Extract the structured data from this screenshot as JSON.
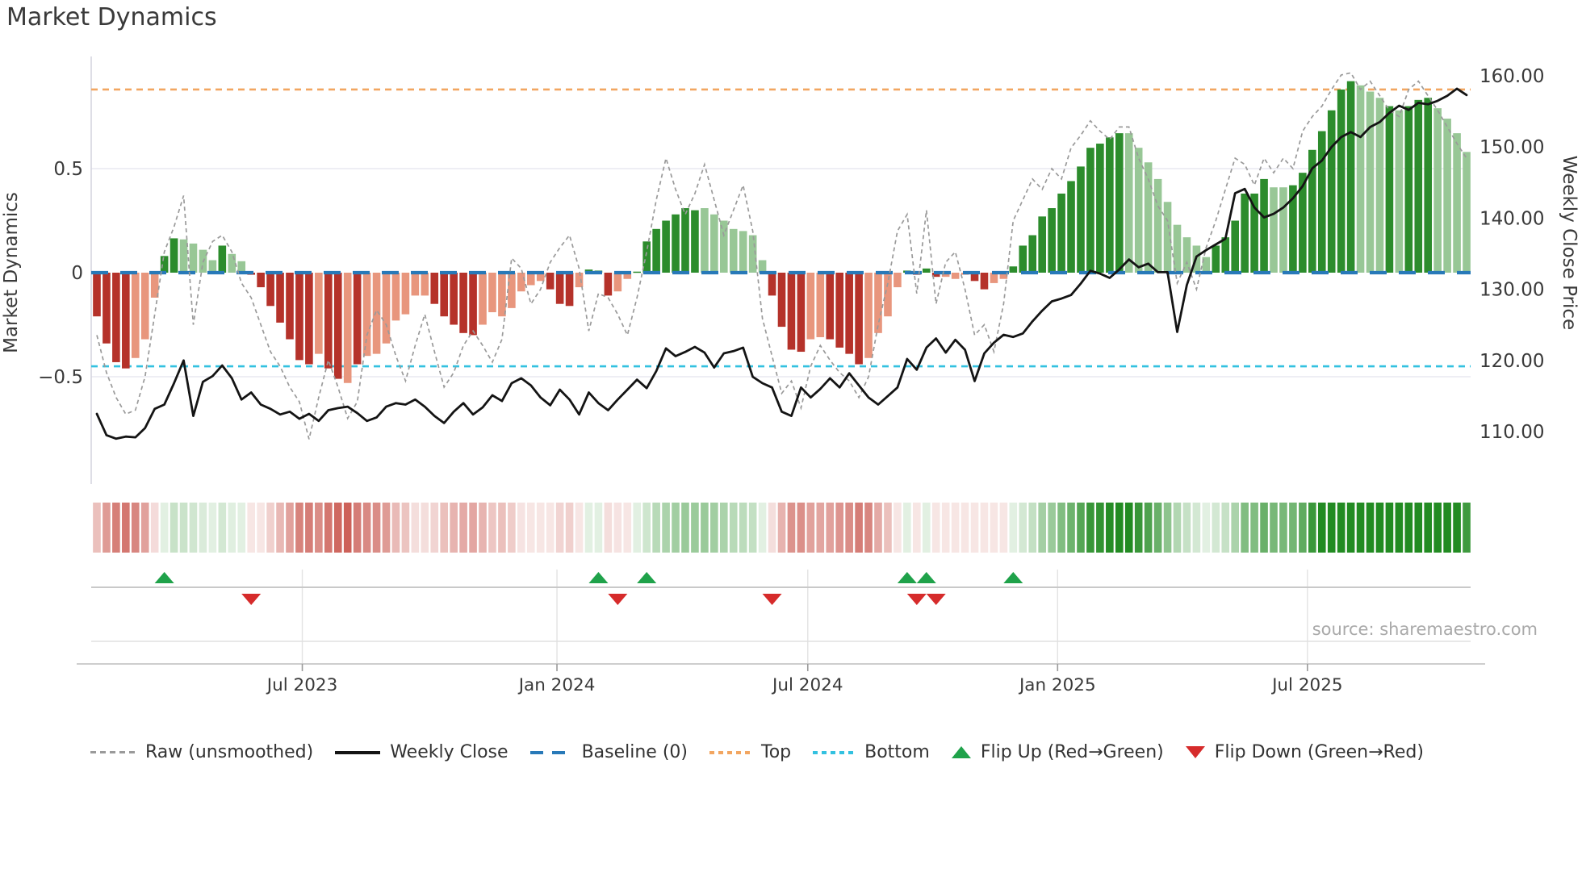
{
  "title": "Market Dynamics",
  "source": "source: sharemaestro.com",
  "legend": [
    {
      "label": "Raw (unsmoothed)",
      "swatch": "raw-dashed-line"
    },
    {
      "label": "Weekly Close",
      "swatch": "solid-black-line"
    },
    {
      "label": "Baseline (0)",
      "swatch": "blue-dashed-line"
    },
    {
      "label": "Top",
      "swatch": "orange-dotted-line"
    },
    {
      "label": "Bottom",
      "swatch": "cyan-dotted-line"
    },
    {
      "label": "Flip Up (Red→Green)",
      "swatch": "green-up-triangle"
    },
    {
      "label": "Flip Down (Green→Red)",
      "swatch": "red-down-triangle"
    }
  ],
  "colors": {
    "dark_red": "#b5322a",
    "light_red": "#e8967d",
    "dark_green": "#2c8c2c",
    "light_green": "#98c796",
    "raw_line": "#9a9a9a",
    "price_line": "#141414",
    "baseline": "#2879b8",
    "top_line": "#f2a661",
    "bottom_line": "#33c1e0",
    "flip_up": "#1fa24a",
    "flip_down": "#d62b2b",
    "grid": "#e8e8f1",
    "spine": "#d5d5e0",
    "tick_text": "#3a3a3a"
  },
  "chart_data": {
    "type": "combo-oscillator-price",
    "title": "Market Dynamics",
    "weeks": 143,
    "osc_axis": {
      "label": "Market Dynamics",
      "ticks": [
        {
          "label": "0.5",
          "v": 0.5
        },
        {
          "label": "0",
          "v": 0
        },
        {
          "label": "−0.5",
          "v": -0.5
        }
      ]
    },
    "price_axis": {
      "label": "Weekly Close Price",
      "ticks": [
        {
          "label": "160.00",
          "v": 160
        },
        {
          "label": "150.00",
          "v": 150
        },
        {
          "label": "140.00",
          "v": 140
        },
        {
          "label": "130.00",
          "v": 130
        },
        {
          "label": "120.00",
          "v": 120
        },
        {
          "label": "110.00",
          "v": 110
        }
      ]
    },
    "x_ticks": [
      {
        "label": "Jul 2023",
        "week": 22.3
      },
      {
        "label": "Jan 2024",
        "week": 48.7
      },
      {
        "label": "Jul 2024",
        "week": 74.7
      },
      {
        "label": "Jan 2025",
        "week": 100.6
      },
      {
        "label": "Jul 2025",
        "week": 126.5
      }
    ],
    "baseline": 0,
    "top_band": 0.88,
    "bottom_band": -0.45,
    "osc": [
      -0.21,
      -0.34,
      -0.43,
      -0.46,
      -0.41,
      -0.32,
      -0.12,
      0.08,
      0.165,
      0.16,
      0.14,
      0.11,
      0.06,
      0.13,
      0.09,
      0.055,
      -0.01,
      -0.07,
      -0.16,
      -0.24,
      -0.32,
      -0.42,
      -0.44,
      -0.39,
      -0.46,
      -0.51,
      -0.53,
      -0.44,
      -0.4,
      -0.39,
      -0.34,
      -0.23,
      -0.2,
      -0.11,
      -0.11,
      -0.15,
      -0.21,
      -0.25,
      -0.29,
      -0.3,
      -0.25,
      -0.19,
      -0.21,
      -0.17,
      -0.09,
      -0.06,
      -0.04,
      -0.08,
      -0.15,
      -0.16,
      -0.07,
      0.015,
      0.01,
      -0.11,
      -0.09,
      -0.03,
      0.005,
      0.15,
      0.21,
      0.25,
      0.28,
      0.31,
      0.3,
      0.31,
      0.28,
      0.25,
      0.21,
      0.2,
      0.18,
      0.06,
      -0.11,
      -0.26,
      -0.37,
      -0.38,
      -0.32,
      -0.31,
      -0.32,
      -0.36,
      -0.39,
      -0.44,
      -0.41,
      -0.29,
      -0.21,
      -0.07,
      0.01,
      -0.01,
      0.02,
      -0.02,
      -0.02,
      -0.03,
      -0.01,
      -0.04,
      -0.08,
      -0.05,
      -0.03,
      0.03,
      0.13,
      0.18,
      0.27,
      0.31,
      0.38,
      0.44,
      0.51,
      0.6,
      0.62,
      0.65,
      0.67,
      0.67,
      0.6,
      0.53,
      0.45,
      0.34,
      0.23,
      0.17,
      0.13,
      0.075,
      0.13,
      0.17,
      0.25,
      0.38,
      0.38,
      0.45,
      0.41,
      0.41,
      0.42,
      0.48,
      0.59,
      0.68,
      0.78,
      0.88,
      0.92,
      0.9,
      0.87,
      0.84,
      0.8,
      0.78,
      0.8,
      0.83,
      0.84,
      0.79,
      0.74,
      0.67,
      0.58
    ],
    "raw": [
      -0.3,
      -0.48,
      -0.6,
      -0.68,
      -0.66,
      -0.5,
      -0.2,
      0.1,
      0.22,
      0.37,
      -0.25,
      0.05,
      0.15,
      0.18,
      0.1,
      -0.05,
      -0.12,
      -0.25,
      -0.38,
      -0.45,
      -0.55,
      -0.62,
      -0.8,
      -0.6,
      -0.42,
      -0.55,
      -0.7,
      -0.62,
      -0.3,
      -0.18,
      -0.25,
      -0.4,
      -0.52,
      -0.35,
      -0.2,
      -0.38,
      -0.55,
      -0.48,
      -0.35,
      -0.28,
      -0.35,
      -0.43,
      -0.32,
      0.07,
      0.02,
      -0.15,
      -0.08,
      0.05,
      0.12,
      0.18,
      0.02,
      -0.28,
      -0.1,
      -0.12,
      -0.2,
      -0.3,
      -0.12,
      0.1,
      0.35,
      0.55,
      0.4,
      0.28,
      0.38,
      0.52,
      0.35,
      0.18,
      0.3,
      0.42,
      0.2,
      -0.22,
      -0.4,
      -0.58,
      -0.52,
      -0.65,
      -0.45,
      -0.35,
      -0.42,
      -0.48,
      -0.52,
      -0.6,
      -0.5,
      -0.25,
      -0.05,
      0.2,
      0.28,
      -0.1,
      0.3,
      -0.15,
      0.05,
      0.1,
      -0.08,
      -0.3,
      -0.25,
      -0.38,
      -0.15,
      0.25,
      0.35,
      0.45,
      0.4,
      0.5,
      0.45,
      0.6,
      0.66,
      0.73,
      0.68,
      0.64,
      0.7,
      0.7,
      0.55,
      0.45,
      0.32,
      0.25,
      -0.05,
      0.05,
      -0.08,
      0.12,
      0.25,
      0.4,
      0.55,
      0.52,
      0.42,
      0.55,
      0.48,
      0.55,
      0.5,
      0.68,
      0.75,
      0.8,
      0.88,
      0.95,
      0.96,
      0.88,
      0.92,
      0.85,
      0.78,
      0.75,
      0.88,
      0.92,
      0.85,
      0.78,
      0.7,
      0.62,
      0.55
    ],
    "price": [
      112.5,
      109.5,
      109.0,
      109.3,
      109.2,
      110.5,
      113.2,
      113.8,
      116.8,
      120.0,
      112.2,
      117.0,
      117.8,
      119.3,
      117.5,
      114.5,
      115.5,
      113.8,
      113.2,
      112.4,
      112.8,
      111.8,
      112.5,
      111.5,
      113.0,
      113.3,
      113.5,
      112.6,
      111.5,
      112.0,
      113.5,
      114.0,
      113.8,
      114.5,
      113.5,
      112.2,
      111.2,
      112.8,
      114.0,
      112.4,
      113.4,
      115.1,
      114.3,
      116.8,
      117.5,
      116.5,
      114.8,
      113.7,
      115.9,
      114.5,
      112.4,
      115.5,
      114.0,
      113.0,
      114.5,
      115.9,
      117.3,
      116.1,
      118.5,
      121.7,
      120.6,
      121.2,
      121.9,
      121.1,
      119.0,
      121.0,
      121.3,
      121.8,
      117.7,
      116.8,
      116.2,
      112.8,
      112.2,
      116.2,
      114.8,
      116.0,
      117.5,
      116.2,
      118.2,
      116.5,
      114.8,
      113.8,
      115.0,
      116.2,
      120.2,
      118.7,
      121.8,
      123.1,
      121.1,
      122.9,
      121.5,
      117.1,
      121.0,
      122.5,
      123.6,
      123.3,
      123.8,
      125.5,
      127.0,
      128.3,
      128.7,
      129.2,
      130.8,
      132.6,
      132.2,
      131.6,
      132.8,
      134.2,
      133.1,
      133.6,
      132.4,
      132.4,
      124.0,
      130.6,
      134.6,
      135.5,
      136.3,
      137.1,
      143.5,
      144.1,
      141.5,
      140.1,
      140.6,
      141.5,
      142.8,
      144.5,
      147.0,
      148.1,
      150.0,
      151.4,
      152.1,
      151.4,
      152.8,
      153.5,
      154.8,
      155.8,
      155.2,
      156.2,
      156.0,
      156.5,
      157.2,
      158.2,
      157.3
    ],
    "shade": [
      "dr",
      "dr",
      "dr",
      "dr",
      "lr",
      "lr",
      "lr",
      "dg",
      "dg",
      "lg",
      "lg",
      "lg",
      "lg",
      "dg",
      "lg",
      "lg",
      "dr",
      "dr",
      "dr",
      "dr",
      "dr",
      "dr",
      "dr",
      "lr",
      "dr",
      "dr",
      "lr",
      "dr",
      "lr",
      "lr",
      "lr",
      "lr",
      "lr",
      "lr",
      "lr",
      "dr",
      "dr",
      "dr",
      "dr",
      "dr",
      "lr",
      "lr",
      "lr",
      "lr",
      "lr",
      "lr",
      "lr",
      "dr",
      "dr",
      "dr",
      "lr",
      "dg",
      "dg",
      "dr",
      "lr",
      "lr",
      "dg",
      "dg",
      "dg",
      "dg",
      "dg",
      "dg",
      "dg",
      "lg",
      "lg",
      "lg",
      "lg",
      "lg",
      "lg",
      "lg",
      "dr",
      "dr",
      "dr",
      "dr",
      "lr",
      "lr",
      "dr",
      "dr",
      "dr",
      "dr",
      "lr",
      "lr",
      "lr",
      "lr",
      "dg",
      "dr",
      "dg",
      "dr",
      "lr",
      "lr",
      "lr",
      "dr",
      "dr",
      "lr",
      "lr",
      "dg",
      "dg",
      "dg",
      "dg",
      "dg",
      "dg",
      "dg",
      "dg",
      "dg",
      "dg",
      "dg",
      "dg",
      "lg",
      "lg",
      "lg",
      "lg",
      "lg",
      "lg",
      "lg",
      "lg",
      "lg",
      "dg",
      "dg",
      "dg",
      "dg",
      "dg",
      "dg",
      "lg",
      "lg",
      "dg",
      "dg",
      "dg",
      "dg",
      "dg",
      "dg",
      "dg",
      "lg",
      "lg",
      "lg",
      "dg",
      "lg",
      "dg",
      "dg",
      "dg",
      "lg",
      "lg",
      "lg",
      "lg"
    ],
    "flip_up_weeks": [
      8,
      53,
      58,
      85,
      87,
      96
    ],
    "flip_down_weeks": [
      17,
      55,
      71,
      86,
      88
    ],
    "heat_strip": "alpha = clamp(|osc|*1.5, 0.13, 1) of sign color",
    "grid": "horizontal at ±0.5 only",
    "legend_position": "bottom"
  }
}
